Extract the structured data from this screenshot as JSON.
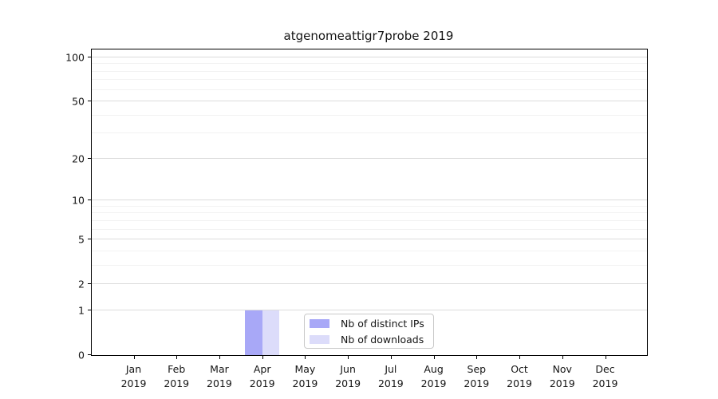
{
  "chart_data": {
    "type": "bar",
    "title": "atgenomeattigr7probe 2019",
    "categories": [
      [
        "Jan",
        "2019"
      ],
      [
        "Feb",
        "2019"
      ],
      [
        "Mar",
        "2019"
      ],
      [
        "Apr",
        "2019"
      ],
      [
        "May",
        "2019"
      ],
      [
        "Jun",
        "2019"
      ],
      [
        "Jul",
        "2019"
      ],
      [
        "Aug",
        "2019"
      ],
      [
        "Sep",
        "2019"
      ],
      [
        "Oct",
        "2019"
      ],
      [
        "Nov",
        "2019"
      ],
      [
        "Dec",
        "2019"
      ]
    ],
    "series": [
      {
        "name": "Nb of distinct IPs",
        "color": "#a8a8f7",
        "values": [
          0,
          0,
          0,
          1,
          0,
          0,
          0,
          0,
          0,
          0,
          0,
          0
        ]
      },
      {
        "name": "Nb of downloads",
        "color": "#dcdcfa",
        "values": [
          0,
          0,
          0,
          1,
          0,
          0,
          0,
          0,
          0,
          0,
          0,
          0
        ]
      }
    ],
    "yscale": "log1p",
    "ylim": [
      0,
      113
    ],
    "yticks": [
      0,
      1,
      2,
      5,
      10,
      20,
      50,
      100
    ],
    "yticks_minor": [
      3,
      4,
      6,
      7,
      8,
      9,
      30,
      40,
      60,
      70,
      80,
      90
    ],
    "grid": "horizontal",
    "legend_position": "inside-bottom-center",
    "colors": {
      "background": "#ffffff",
      "axis": "#000000",
      "grid_major": "#dcdcdc",
      "grid_minor": "#f2f2f2"
    }
  }
}
